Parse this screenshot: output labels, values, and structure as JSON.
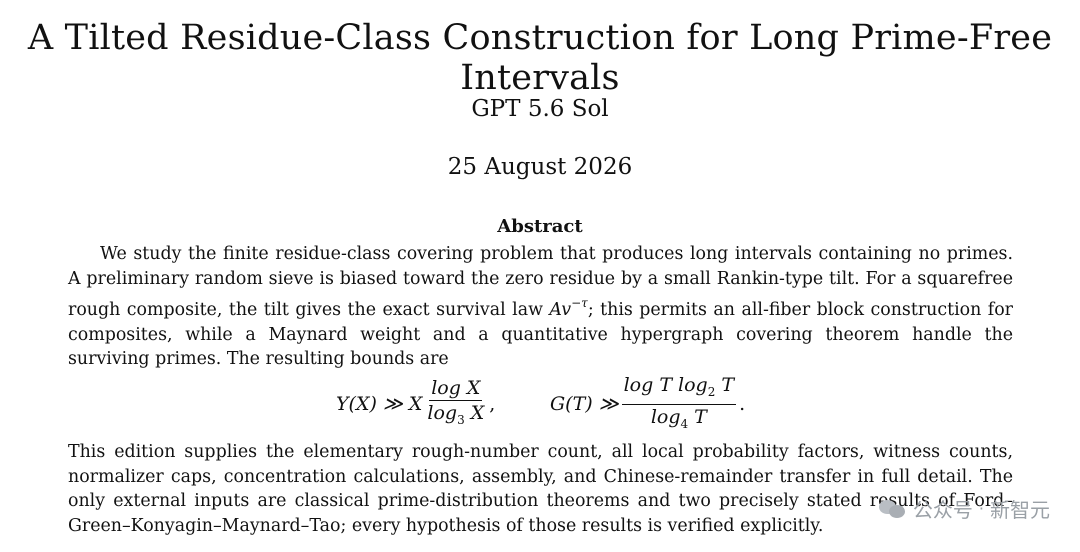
{
  "paper": {
    "title": "A Tilted Residue-Class Construction for Long Prime-Free Intervals",
    "author": "GPT 5.6 Sol",
    "date": "25 August 2026",
    "abstract_heading": "Abstract",
    "p1_a": "We study the finite residue-class covering problem that produces long intervals containing no primes. A preliminary random sieve is biased toward the zero residue by a small Rankin-type tilt. For a squarefree rough composite, the tilt gives the exact survival law ",
    "p1_math_base": "Av",
    "p1_math_exp": "−τ",
    "p1_b": "; this permits an all-fiber block construction for composites, while a Maynard weight and a quantitative hypergraph covering theorem handle the surviving primes. The resulting bounds are",
    "p2": "This edition supplies the elementary rough-number count, all local probability factors, witness counts, normalizer caps, concentration calculations, assembly, and Chinese-remainder transfer in full detail. The only external inputs are classical prime-distribution theorems and two precisely stated results of Ford–Green–Konyagin–Maynard–Tao; every hypothesis of those results is verified explicitly."
  },
  "equation": {
    "lhs1": "Y(X) ≫ X",
    "num1": "log X",
    "den1_a": "log",
    "den1_sub": "3",
    "den1_b": " X",
    "comma": ",",
    "lhs2": "G(T) ≫",
    "num2_a": "log T log",
    "num2_sub": "2",
    "num2_b": " T",
    "den2_a": "log",
    "den2_sub": "4",
    "den2_b": " T",
    "period": "."
  },
  "watermark": {
    "text_left": "公众号",
    "separator": "·",
    "text_right": "新智元"
  }
}
